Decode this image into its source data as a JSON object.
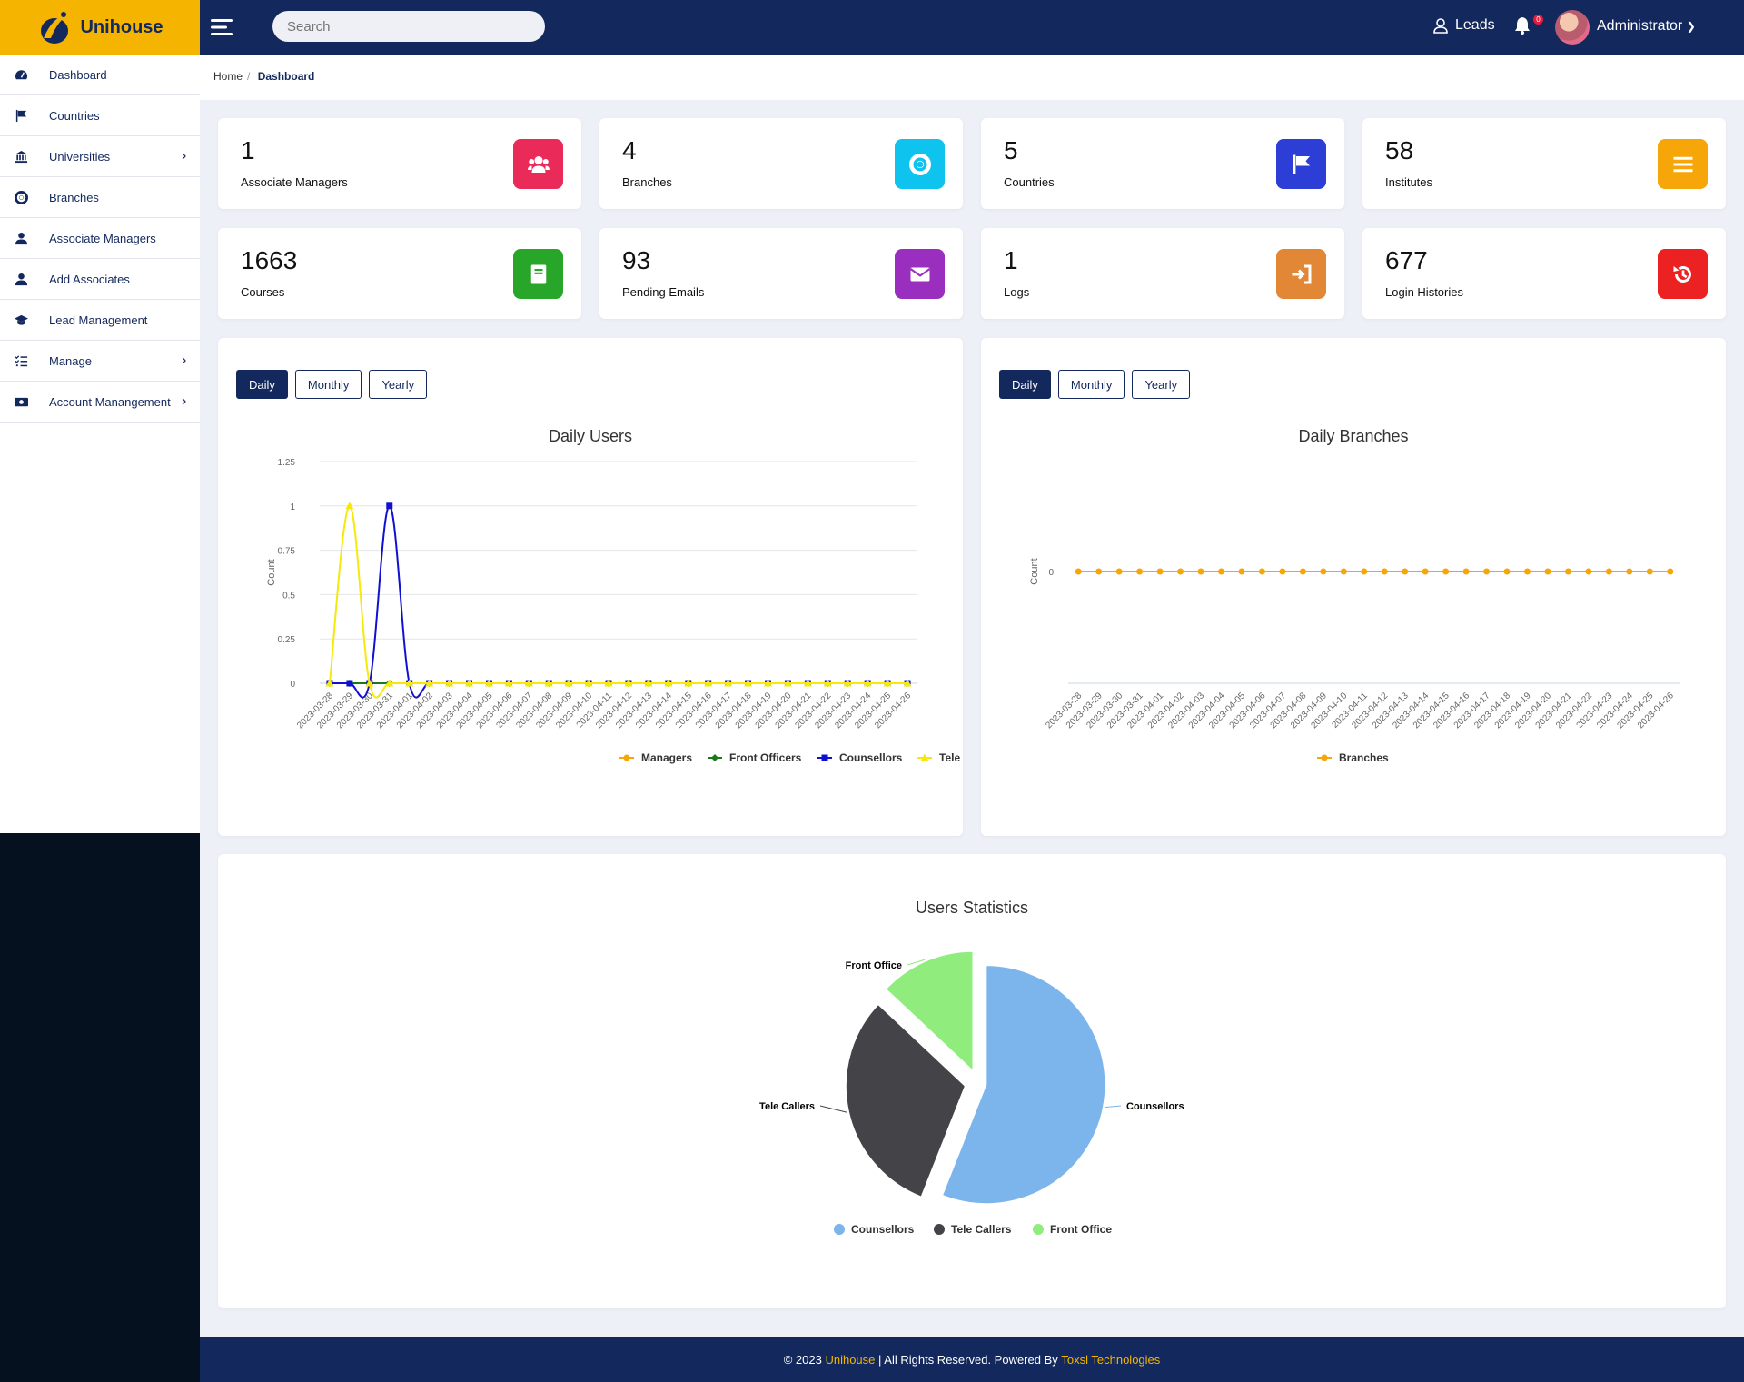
{
  "brand": {
    "name": "Unihouse"
  },
  "sidebar": {
    "items": [
      {
        "label": "Dashboard",
        "icon": "gauge-icon",
        "chevron": false
      },
      {
        "label": "Countries",
        "icon": "flag-icon",
        "chevron": false
      },
      {
        "label": "Universities",
        "icon": "institution-icon",
        "chevron": true
      },
      {
        "label": "Branches",
        "icon": "lifebuoy-icon",
        "chevron": false
      },
      {
        "label": "Associate Managers",
        "icon": "user-icon",
        "chevron": false
      },
      {
        "label": "Add Associates",
        "icon": "user-icon",
        "chevron": false
      },
      {
        "label": "Lead Management",
        "icon": "graduation-cap-icon",
        "chevron": false
      },
      {
        "label": "Manage",
        "icon": "task-list-icon",
        "chevron": true
      },
      {
        "label": "Account Manangement",
        "icon": "money-icon",
        "chevron": true
      }
    ]
  },
  "topbar": {
    "search_placeholder": "Search",
    "leads_label": "Leads",
    "notification_count": "0",
    "user_name": "Administrator"
  },
  "breadcrumb": {
    "home": "Home",
    "current": "Dashboard"
  },
  "stats": [
    {
      "value": "1",
      "label": "Associate Managers",
      "color": "#ea2b5a",
      "icon": "users-icon"
    },
    {
      "value": "4",
      "label": "Branches",
      "color": "#0fc3ef",
      "icon": "lifebuoy-icon"
    },
    {
      "value": "5",
      "label": "Countries",
      "color": "#2d3ed6",
      "icon": "flag-icon"
    },
    {
      "value": "58",
      "label": "Institutes",
      "color": "#f6a609",
      "icon": "list-icon"
    },
    {
      "value": "1663",
      "label": "Courses",
      "color": "#28a62a",
      "icon": "book-icon"
    },
    {
      "value": "93",
      "label": "Pending Emails",
      "color": "#9a2fbf",
      "icon": "envelope-icon"
    },
    {
      "value": "1",
      "label": "Logs",
      "color": "#e28735",
      "icon": "sign-in-icon"
    },
    {
      "value": "677",
      "label": "Login Histories",
      "color": "#ec2222",
      "icon": "history-icon"
    }
  ],
  "tabs": [
    "Daily",
    "Monthly",
    "Yearly"
  ],
  "chart_data": [
    {
      "type": "line",
      "title": "Daily Users",
      "ylabel": "Count",
      "ylim": [
        0,
        1.25
      ],
      "yticks": [
        "0",
        "0.25",
        "0.5",
        "0.75",
        "1",
        "1.25"
      ],
      "categories": [
        "2023-03-28",
        "2023-03-29",
        "2023-03-30",
        "2023-03-31",
        "2023-04-01",
        "2023-04-02",
        "2023-04-03",
        "2023-04-04",
        "2023-04-05",
        "2023-04-06",
        "2023-04-07",
        "2023-04-08",
        "2023-04-09",
        "2023-04-10",
        "2023-04-11",
        "2023-04-12",
        "2023-04-13",
        "2023-04-14",
        "2023-04-15",
        "2023-04-16",
        "2023-04-17",
        "2023-04-18",
        "2023-04-19",
        "2023-04-20",
        "2023-04-21",
        "2023-04-22",
        "2023-04-23",
        "2023-04-24",
        "2023-04-25",
        "2023-04-26"
      ],
      "series": [
        {
          "name": "Managers",
          "color": "#f6a609",
          "values": [
            0,
            0,
            0,
            0,
            0,
            0,
            0,
            0,
            0,
            0,
            0,
            0,
            0,
            0,
            0,
            0,
            0,
            0,
            0,
            0,
            0,
            0,
            0,
            0,
            0,
            0,
            0,
            0,
            0,
            0
          ]
        },
        {
          "name": "Front Officers",
          "color": "#1a7a1a",
          "values": [
            0,
            0,
            0,
            0,
            0,
            0,
            0,
            0,
            0,
            0,
            0,
            0,
            0,
            0,
            0,
            0,
            0,
            0,
            0,
            0,
            0,
            0,
            0,
            0,
            0,
            0,
            0,
            0,
            0,
            0
          ]
        },
        {
          "name": "Counsellors",
          "color": "#1010d0",
          "values": [
            0,
            0,
            0,
            1,
            0,
            0,
            0,
            0,
            0,
            0,
            0,
            0,
            0,
            0,
            0,
            0,
            0,
            0,
            0,
            0,
            0,
            0,
            0,
            0,
            0,
            0,
            0,
            0,
            0,
            0
          ]
        },
        {
          "name": "Tele Callers",
          "color": "#f5e90a",
          "values": [
            0,
            1,
            0,
            0,
            0,
            0,
            0,
            0,
            0,
            0,
            0,
            0,
            0,
            0,
            0,
            0,
            0,
            0,
            0,
            0,
            0,
            0,
            0,
            0,
            0,
            0,
            0,
            0,
            0,
            0
          ]
        }
      ]
    },
    {
      "type": "line",
      "title": "Daily Branches",
      "ylabel": "Count",
      "yticks": [
        "0"
      ],
      "categories": [
        "2023-03-28",
        "2023-03-29",
        "2023-03-30",
        "2023-03-31",
        "2023-04-01",
        "2023-04-02",
        "2023-04-03",
        "2023-04-04",
        "2023-04-05",
        "2023-04-06",
        "2023-04-07",
        "2023-04-08",
        "2023-04-09",
        "2023-04-10",
        "2023-04-11",
        "2023-04-12",
        "2023-04-13",
        "2023-04-14",
        "2023-04-15",
        "2023-04-16",
        "2023-04-17",
        "2023-04-18",
        "2023-04-19",
        "2023-04-20",
        "2023-04-21",
        "2023-04-22",
        "2023-04-23",
        "2023-04-24",
        "2023-04-25",
        "2023-04-26"
      ],
      "series": [
        {
          "name": "Branches",
          "color": "#f6a609",
          "values": [
            0,
            0,
            0,
            0,
            0,
            0,
            0,
            0,
            0,
            0,
            0,
            0,
            0,
            0,
            0,
            0,
            0,
            0,
            0,
            0,
            0,
            0,
            0,
            0,
            0,
            0,
            0,
            0,
            0,
            0
          ]
        }
      ]
    },
    {
      "type": "pie",
      "title": "Users Statistics",
      "slices": [
        {
          "name": "Counsellors",
          "value": 56,
          "color": "#7cb5ec"
        },
        {
          "name": "Tele Callers",
          "value": 31,
          "color": "#434348"
        },
        {
          "name": "Front Office",
          "value": 13,
          "color": "#90ed7d"
        }
      ]
    }
  ],
  "footer": {
    "copyright": "© 2023",
    "brand": "Unihouse",
    "rights": "| All Rights Reserved. Powered By",
    "company": "Toxsl Technologies"
  }
}
